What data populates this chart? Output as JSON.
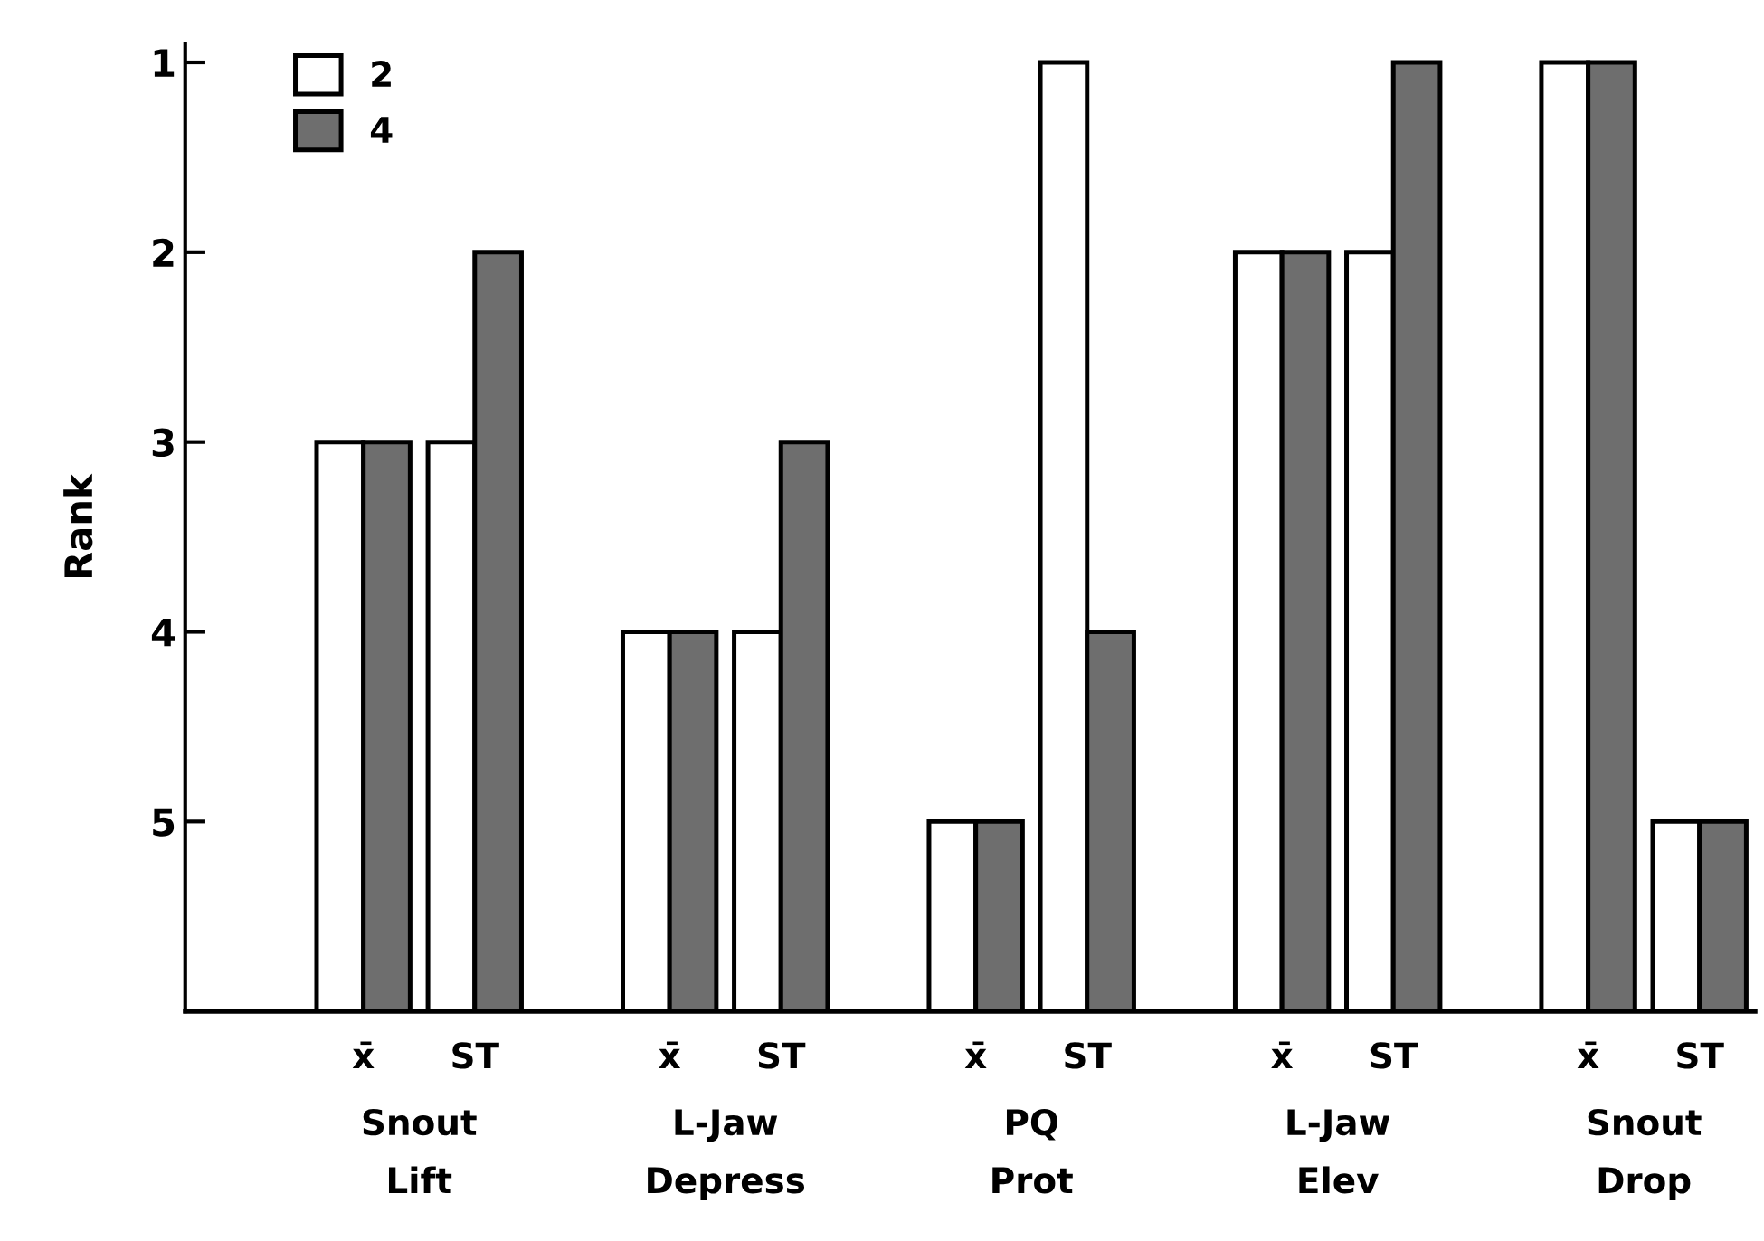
{
  "chart_data": {
    "type": "bar",
    "ylabel": "Rank",
    "categories": [
      "x̄",
      "ST",
      "x̄",
      "ST",
      "x̄",
      "ST",
      "x̄",
      "ST",
      "x̄",
      "ST"
    ],
    "series": [
      {
        "name": "2",
        "color": "#ffffff",
        "base": [
          6,
          6,
          6,
          6,
          6,
          6,
          6,
          6,
          6,
          6
        ],
        "values": [
          -3,
          -3,
          -2,
          -2,
          -1,
          -5,
          -4,
          -4,
          -5,
          -1
        ]
      },
      {
        "name": "4",
        "color": "#6e6e6e",
        "base": [
          6,
          6,
          6,
          6,
          6,
          6,
          6,
          6,
          6,
          6
        ],
        "values": [
          -3,
          -4,
          -2,
          -3,
          -1,
          -2,
          -4,
          -5,
          -5,
          -1
        ]
      }
    ],
    "ylim": [
      6,
      0.9
    ],
    "yticks": [
      1,
      2,
      3,
      4,
      5
    ],
    "grid": false,
    "legend": "top left",
    "annotations": [
      "Snout\nLift",
      "L-Jaw\nDepress",
      "PQ\nProt",
      "L-Jaw\nElev",
      "Snout\nDrop"
    ]
  }
}
